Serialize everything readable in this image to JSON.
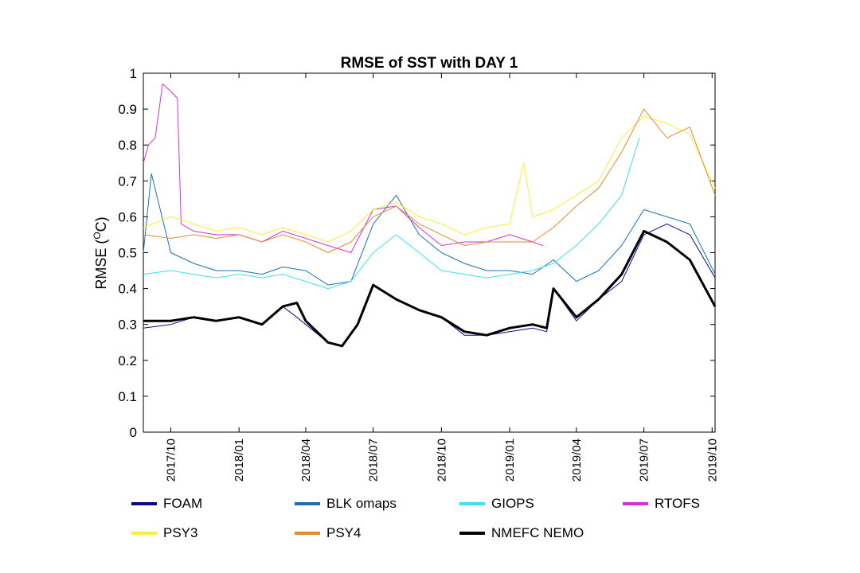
{
  "chart_data": {
    "type": "line",
    "title": "RMSE of SST with DAY 1",
    "ylabel_main": "RMSE (",
    "ylabel_sup": "O",
    "ylabel_end": "C)",
    "xlabel": "",
    "ylim": [
      0,
      1
    ],
    "yticks": [
      "0",
      "0.1",
      "0.2",
      "0.3",
      "0.4",
      "0.5",
      "0.6",
      "0.7",
      "0.8",
      "0.9",
      "1"
    ],
    "x_range": [
      "2017-08-25",
      "2019-10-05"
    ],
    "xticks": [
      {
        "date": "2017-10-01",
        "label": "2017/10"
      },
      {
        "date": "2018-01-01",
        "label": "2018/01"
      },
      {
        "date": "2018-04-01",
        "label": "2018/04"
      },
      {
        "date": "2018-07-01",
        "label": "2018/07"
      },
      {
        "date": "2018-10-01",
        "label": "2018/10"
      },
      {
        "date": "2019-01-01",
        "label": "2019/01"
      },
      {
        "date": "2019-04-01",
        "label": "2019/04"
      },
      {
        "date": "2019-07-01",
        "label": "2019/07"
      },
      {
        "date": "2019-10-01",
        "label": "2019/10"
      }
    ],
    "grid": false,
    "legend_position": "bottom",
    "series": [
      {
        "name": "FOAM",
        "color": "#0a0a8c",
        "width": 1,
        "x": [
          "2017-08-25",
          "2017-10-01",
          "2017-11-01",
          "2017-12-01",
          "2018-01-01",
          "2018-02-01",
          "2018-03-01",
          "2018-03-20",
          "2018-04-01",
          "2018-05-01",
          "2018-05-20",
          "2018-06-10",
          "2018-07-01",
          "2018-08-01",
          "2018-09-01",
          "2018-10-01",
          "2018-11-01",
          "2018-12-01",
          "2019-01-01",
          "2019-02-01",
          "2019-02-20",
          "2019-03-01",
          "2019-04-01",
          "2019-05-01",
          "2019-06-01",
          "2019-07-01",
          "2019-08-01",
          "2019-09-01",
          "2019-10-05"
        ],
        "y": [
          0.29,
          0.3,
          0.32,
          0.31,
          0.32,
          0.3,
          0.35,
          0.32,
          0.3,
          0.25,
          0.24,
          0.3,
          0.41,
          0.37,
          0.34,
          0.32,
          0.27,
          0.27,
          0.28,
          0.29,
          0.28,
          0.4,
          0.31,
          0.37,
          0.42,
          0.55,
          0.58,
          0.55,
          0.43
        ]
      },
      {
        "name": "BLK omaps",
        "color": "#1f6fb4",
        "width": 1,
        "x": [
          "2017-08-25",
          "2017-09-05",
          "2017-10-01",
          "2017-11-01",
          "2017-12-01",
          "2018-01-01",
          "2018-02-01",
          "2018-03-01",
          "2018-04-01",
          "2018-05-01",
          "2018-06-01",
          "2018-07-01",
          "2018-08-01",
          "2018-09-01",
          "2018-10-01",
          "2018-11-01",
          "2018-12-01",
          "2019-01-01",
          "2019-02-01",
          "2019-03-01",
          "2019-04-01",
          "2019-05-01",
          "2019-06-01",
          "2019-07-01",
          "2019-08-01",
          "2019-09-01",
          "2019-10-05"
        ],
        "y": [
          0.5,
          0.72,
          0.5,
          0.47,
          0.45,
          0.45,
          0.44,
          0.46,
          0.45,
          0.41,
          0.42,
          0.58,
          0.66,
          0.55,
          0.5,
          0.47,
          0.45,
          0.45,
          0.44,
          0.48,
          0.42,
          0.45,
          0.52,
          0.62,
          0.6,
          0.58,
          0.44
        ]
      },
      {
        "name": "GIOPS",
        "color": "#3ee0ee",
        "width": 1,
        "x": [
          "2017-08-25",
          "2017-10-01",
          "2017-11-01",
          "2017-12-01",
          "2018-01-01",
          "2018-02-01",
          "2018-03-01",
          "2018-04-01",
          "2018-05-01",
          "2018-06-01",
          "2018-07-01",
          "2018-08-01",
          "2018-09-01",
          "2018-10-01",
          "2018-11-01",
          "2018-12-01",
          "2019-01-01",
          "2019-02-01",
          "2019-03-01",
          "2019-04-01",
          "2019-05-01",
          "2019-06-01",
          "2019-06-25"
        ],
        "y": [
          0.44,
          0.45,
          0.44,
          0.43,
          0.44,
          0.43,
          0.44,
          0.42,
          0.4,
          0.42,
          0.5,
          0.55,
          0.5,
          0.45,
          0.44,
          0.43,
          0.44,
          0.45,
          0.47,
          0.52,
          0.58,
          0.66,
          0.82
        ]
      },
      {
        "name": "RTOFS",
        "color": "#d333d6",
        "width": 1,
        "x": [
          "2017-08-25",
          "2017-09-01",
          "2017-09-10",
          "2017-09-20",
          "2017-10-01",
          "2017-10-10",
          "2017-10-15",
          "2017-11-01",
          "2017-12-01",
          "2018-01-01",
          "2018-02-01",
          "2018-03-01",
          "2018-04-01",
          "2018-05-01",
          "2018-06-01",
          "2018-07-01",
          "2018-08-01",
          "2018-09-01",
          "2018-10-01",
          "2018-11-01",
          "2018-12-01",
          "2019-01-01",
          "2019-02-01",
          "2019-02-15"
        ],
        "y": [
          0.75,
          0.8,
          0.82,
          0.97,
          0.95,
          0.93,
          0.58,
          0.56,
          0.55,
          0.55,
          0.53,
          0.56,
          0.54,
          0.52,
          0.5,
          0.62,
          0.63,
          0.57,
          0.52,
          0.53,
          0.53,
          0.55,
          0.53,
          0.52
        ]
      },
      {
        "name": "PSY3",
        "color": "#f7ef3a",
        "width": 1,
        "x": [
          "2017-08-25",
          "2017-10-01",
          "2017-11-01",
          "2017-12-01",
          "2018-01-01",
          "2018-02-01",
          "2018-03-01",
          "2018-04-01",
          "2018-05-01",
          "2018-06-01",
          "2018-07-01",
          "2018-08-01",
          "2018-09-01",
          "2018-10-01",
          "2018-11-01",
          "2018-12-01",
          "2019-01-01",
          "2019-01-20",
          "2019-02-01",
          "2019-03-01",
          "2019-04-01",
          "2019-05-01",
          "2019-06-01",
          "2019-07-01",
          "2019-08-01",
          "2019-09-01",
          "2019-10-05"
        ],
        "y": [
          0.57,
          0.6,
          0.58,
          0.56,
          0.57,
          0.55,
          0.57,
          0.55,
          0.53,
          0.56,
          0.62,
          0.64,
          0.6,
          0.58,
          0.55,
          0.57,
          0.58,
          0.75,
          0.6,
          0.62,
          0.66,
          0.7,
          0.82,
          0.88,
          0.86,
          0.83,
          0.68
        ]
      },
      {
        "name": "PSY4",
        "color": "#e8892c",
        "width": 1,
        "x": [
          "2017-08-25",
          "2017-10-01",
          "2017-11-01",
          "2017-12-01",
          "2018-01-01",
          "2018-02-01",
          "2018-03-01",
          "2018-04-01",
          "2018-05-01",
          "2018-06-01",
          "2018-07-01",
          "2018-08-01",
          "2018-09-01",
          "2018-10-01",
          "2018-11-01",
          "2018-12-01",
          "2019-01-01",
          "2019-02-01",
          "2019-03-01",
          "2019-04-01",
          "2019-05-01",
          "2019-06-01",
          "2019-07-01",
          "2019-08-01",
          "2019-09-01",
          "2019-10-05"
        ],
        "y": [
          0.55,
          0.54,
          0.55,
          0.54,
          0.55,
          0.53,
          0.55,
          0.53,
          0.5,
          0.53,
          0.6,
          0.63,
          0.58,
          0.55,
          0.52,
          0.53,
          0.53,
          0.53,
          0.57,
          0.63,
          0.68,
          0.78,
          0.9,
          0.82,
          0.85,
          0.66
        ]
      },
      {
        "name": "NMEFC NEMO",
        "color": "#000000",
        "width": 3,
        "x": [
          "2017-08-25",
          "2017-10-01",
          "2017-11-01",
          "2017-12-01",
          "2018-01-01",
          "2018-02-01",
          "2018-03-01",
          "2018-03-20",
          "2018-04-01",
          "2018-05-01",
          "2018-05-20",
          "2018-06-10",
          "2018-07-01",
          "2018-08-01",
          "2018-09-01",
          "2018-10-01",
          "2018-11-01",
          "2018-12-01",
          "2019-01-01",
          "2019-02-01",
          "2019-02-20",
          "2019-03-01",
          "2019-04-01",
          "2019-05-01",
          "2019-06-01",
          "2019-07-01",
          "2019-08-01",
          "2019-09-01",
          "2019-10-05"
        ],
        "y": [
          0.31,
          0.31,
          0.32,
          0.31,
          0.32,
          0.3,
          0.35,
          0.36,
          0.31,
          0.25,
          0.24,
          0.3,
          0.41,
          0.37,
          0.34,
          0.32,
          0.28,
          0.27,
          0.29,
          0.3,
          0.29,
          0.4,
          0.32,
          0.37,
          0.44,
          0.56,
          0.53,
          0.48,
          0.35
        ]
      }
    ]
  }
}
